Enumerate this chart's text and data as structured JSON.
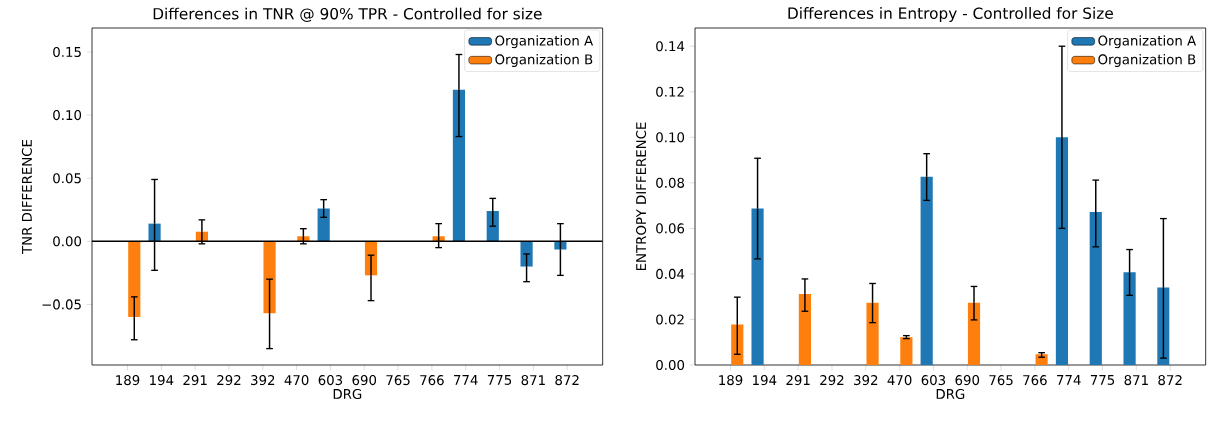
{
  "chart_data": [
    {
      "type": "bar",
      "title": "Differences in TNR @ 90% TPR - Controlled for size",
      "xlabel": "DRG",
      "ylabel": "TNR DIFFERENCE",
      "categories": [
        "189",
        "194",
        "291",
        "292",
        "392",
        "470",
        "603",
        "690",
        "765",
        "766",
        "774",
        "775",
        "871",
        "872"
      ],
      "series": [
        {
          "name": "Organization A",
          "color": "#1f77b4",
          "values": [
            null,
            0.014,
            null,
            null,
            null,
            null,
            0.026,
            null,
            null,
            null,
            0.12,
            0.024,
            -0.02,
            -0.0065
          ],
          "errors": [
            null,
            [
              -0.023,
              0.049
            ],
            null,
            null,
            null,
            null,
            [
              0.019,
              0.033
            ],
            null,
            null,
            null,
            [
              0.083,
              0.148
            ],
            [
              0.012,
              0.034
            ],
            [
              -0.032,
              -0.01
            ],
            [
              -0.027,
              0.014
            ]
          ]
        },
        {
          "name": "Organization B",
          "color": "#ff7f0e",
          "values": [
            -0.06,
            null,
            0.0076,
            null,
            -0.057,
            0.004,
            null,
            -0.027,
            null,
            0.004,
            null,
            null,
            null,
            null
          ],
          "errors": [
            [
              -0.078,
              -0.044
            ],
            null,
            [
              -0.002,
              0.017
            ],
            null,
            [
              -0.085,
              -0.03
            ],
            [
              -0.002,
              0.01
            ],
            null,
            [
              -0.047,
              -0.011
            ],
            null,
            [
              -0.005,
              0.014
            ],
            null,
            null,
            null,
            null
          ]
        }
      ],
      "ylim": [
        -0.098,
        0.169
      ],
      "yticks": [
        {
          "value": -0.05,
          "label": "−0.05"
        },
        {
          "value": 0,
          "label": "0.00"
        },
        {
          "value": 0.05,
          "label": "0.05"
        },
        {
          "value": 0.1,
          "label": "0.10"
        },
        {
          "value": 0.15,
          "label": "0.15"
        }
      ],
      "ref_lines": [
        {
          "axis": "y",
          "value": 0,
          "color": "#000000"
        }
      ],
      "legend": "top right"
    },
    {
      "type": "bar",
      "title": "Differences in Entropy - Controlled for Size",
      "xlabel": "DRG",
      "ylabel": "ENTROPY DIFFERENCE",
      "categories": [
        "189",
        "194",
        "291",
        "292",
        "392",
        "470",
        "603",
        "690",
        "765",
        "766",
        "774",
        "775",
        "871",
        "872"
      ],
      "series": [
        {
          "name": "Organization A",
          "color": "#1f77b4",
          "values": [
            null,
            0.0687,
            null,
            null,
            null,
            null,
            0.0827,
            null,
            null,
            null,
            0.1,
            0.0672,
            0.0407,
            0.034
          ],
          "errors": [
            null,
            [
              0.0466,
              0.0908
            ],
            null,
            null,
            null,
            null,
            [
              0.0723,
              0.0928
            ],
            null,
            null,
            null,
            [
              0.06,
              0.14
            ],
            [
              0.0519,
              0.0812
            ],
            [
              0.0306,
              0.0507
            ],
            [
              0.003,
              0.0643
            ]
          ]
        },
        {
          "name": "Organization B",
          "color": "#ff7f0e",
          "values": [
            0.0178,
            null,
            0.0312,
            null,
            0.0273,
            0.0122,
            null,
            0.0273,
            null,
            0.0047,
            null,
            null,
            null,
            null
          ],
          "errors": [
            [
              0.0047,
              0.0298
            ],
            null,
            [
              0.0236,
              0.0378
            ],
            null,
            [
              0.0186,
              0.0358
            ],
            [
              0.0116,
              0.0129
            ],
            null,
            [
              0.0198,
              0.0345
            ],
            null,
            [
              0.0034,
              0.0054
            ],
            null,
            null,
            null,
            null
          ]
        }
      ],
      "ylim": [
        0,
        0.148
      ],
      "yticks": [
        {
          "value": 0,
          "label": "0.00"
        },
        {
          "value": 0.02,
          "label": "0.02"
        },
        {
          "value": 0.04,
          "label": "0.04"
        },
        {
          "value": 0.06,
          "label": "0.06"
        },
        {
          "value": 0.08,
          "label": "0.08"
        },
        {
          "value": 0.1,
          "label": "0.10"
        },
        {
          "value": 0.12,
          "label": "0.12"
        },
        {
          "value": 0.14,
          "label": "0.14"
        }
      ],
      "legend": "top right"
    }
  ]
}
